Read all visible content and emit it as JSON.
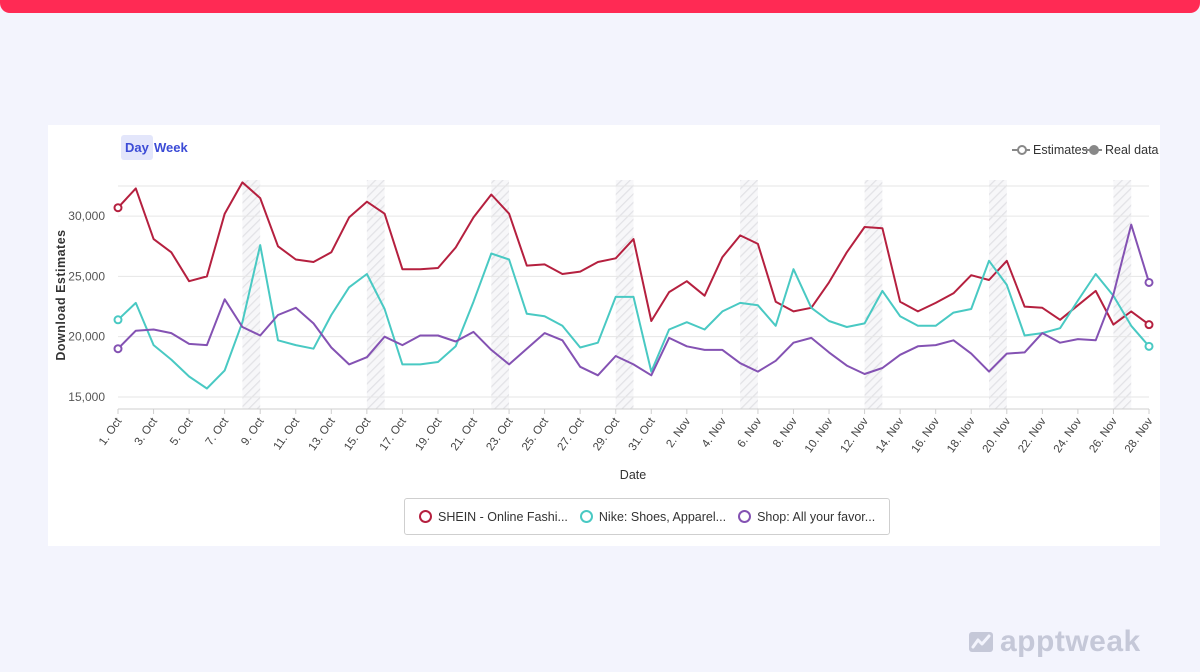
{
  "period_toggle": {
    "day": "Day",
    "week": "Week",
    "selected": "Day"
  },
  "legend_top": {
    "estimates": "Estimates",
    "real": "Real data"
  },
  "brand": {
    "name": "apptweak"
  },
  "colors": {
    "top_bar": "#ff2a54",
    "accent": "#3b4bd6",
    "shein": "#b5203f",
    "nike": "#49c9c3",
    "shop": "#8452b3"
  },
  "chart_data": {
    "type": "line",
    "xlabel": "Date",
    "ylabel": "Download Estimates",
    "ylim": [
      14000,
      33000
    ],
    "y_ticks": [
      "15,000",
      "20,000",
      "25,000",
      "30,000"
    ],
    "y_tick_values": [
      15000,
      20000,
      25000,
      30000
    ],
    "x_tick_labels": [
      "1. Oct",
      "3. Oct",
      "5. Oct",
      "7. Oct",
      "9. Oct",
      "11. Oct",
      "13. Oct",
      "15. Oct",
      "17. Oct",
      "19. Oct",
      "21. Oct",
      "23. Oct",
      "25. Oct",
      "27. Oct",
      "29. Oct",
      "31. Oct",
      "2. Nov",
      "4. Nov",
      "6. Nov",
      "8. Nov",
      "10. Nov",
      "12. Nov",
      "14. Nov",
      "16. Nov",
      "18. Nov",
      "20. Nov",
      "22. Nov",
      "24. Nov",
      "26. Nov",
      "28. Nov"
    ],
    "weekend_bands_start_day": [
      8,
      15,
      22,
      29,
      36,
      43,
      50,
      57
    ],
    "grid": true,
    "legend_position": "bottom",
    "series": [
      {
        "name": "SHEIN - Online Fashi...",
        "color": "#b5203f",
        "values": [
          30700,
          32300,
          28100,
          27000,
          24600,
          25000,
          30200,
          32800,
          31500,
          27500,
          26400,
          26200,
          27000,
          29900,
          31200,
          30200,
          25600,
          25600,
          25700,
          27400,
          29900,
          31800,
          30200,
          25900,
          26000,
          25200,
          25400,
          26200,
          26500,
          28100,
          21300,
          23700,
          24600,
          23400,
          26600,
          28400,
          27700,
          22900,
          22100,
          22400,
          24500,
          27000,
          29100,
          29000,
          22900,
          22100,
          22800,
          23600,
          25100,
          24700,
          26300,
          22500,
          22400,
          21400,
          22600,
          23800,
          21000,
          22100,
          21000
        ]
      },
      {
        "name": "Nike: Shoes, Apparel...",
        "color": "#49c9c3",
        "values": [
          21400,
          22800,
          19300,
          18100,
          16700,
          15700,
          17200,
          21200,
          27600,
          19700,
          19300,
          19000,
          21800,
          24100,
          25200,
          22300,
          17700,
          17700,
          17900,
          19200,
          22900,
          26900,
          26400,
          21900,
          21700,
          20900,
          19100,
          19500,
          23300,
          23300,
          17100,
          20600,
          21200,
          20600,
          22100,
          22800,
          22600,
          20900,
          25600,
          22400,
          21300,
          20800,
          21100,
          23800,
          21700,
          20900,
          20900,
          22000,
          22300,
          26300,
          24300,
          20100,
          20300,
          20700,
          23000,
          25200,
          23400,
          20900,
          19200
        ]
      },
      {
        "name": "Shop: All your favor...",
        "color": "#8452b3",
        "values": [
          19000,
          20500,
          20600,
          20300,
          19400,
          19300,
          23100,
          20800,
          20100,
          21800,
          22400,
          21100,
          19100,
          17700,
          18300,
          20000,
          19300,
          20100,
          20100,
          19600,
          20400,
          18900,
          17700,
          19000,
          20300,
          19700,
          17500,
          16800,
          18400,
          17700,
          16800,
          19900,
          19200,
          18900,
          18900,
          17800,
          17100,
          18000,
          19500,
          19900,
          18700,
          17600,
          16900,
          17400,
          18500,
          19200,
          19300,
          19700,
          18600,
          17100,
          18600,
          18700,
          20300,
          19500,
          19800,
          19700,
          23500,
          29300,
          24500
        ]
      }
    ]
  }
}
